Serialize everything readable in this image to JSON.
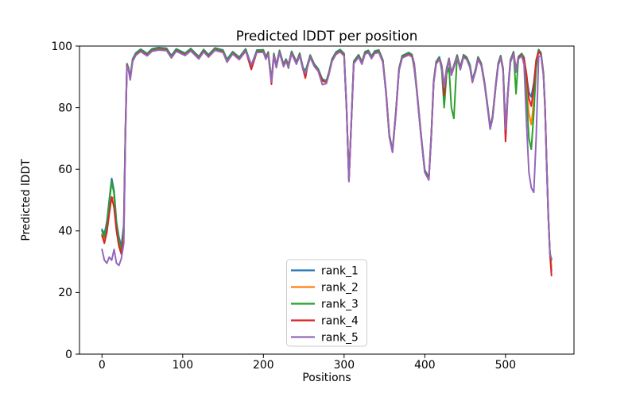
{
  "chart_data": {
    "type": "line",
    "title": "Predicted lDDT per position",
    "xlabel": "Positions",
    "ylabel": "Predicted lDDT",
    "xlim": [
      -27.85,
      584.85
    ],
    "ylim": [
      0,
      100
    ],
    "xticks": [
      0,
      100,
      200,
      300,
      400,
      500
    ],
    "yticks": [
      0,
      20,
      40,
      60,
      80,
      100
    ],
    "grid": false,
    "legend_loc": "lower center",
    "x": [
      0,
      3,
      6,
      9,
      12,
      15,
      18,
      21,
      24,
      27,
      29,
      31,
      33,
      35,
      38,
      42,
      48,
      56,
      62,
      70,
      80,
      86,
      92,
      103,
      110,
      120,
      126,
      132,
      140,
      150,
      155,
      162,
      170,
      178,
      185,
      192,
      200,
      203,
      206,
      210,
      213,
      216,
      220,
      225,
      228,
      231,
      235,
      241,
      245,
      249,
      252,
      255,
      258,
      263,
      268,
      273,
      278,
      281,
      285,
      290,
      295,
      300,
      303,
      306,
      309,
      312,
      318,
      322,
      326,
      330,
      334,
      338,
      343,
      348,
      352,
      356,
      360,
      364,
      368,
      372,
      376,
      380,
      384,
      387,
      390,
      395,
      400,
      405,
      408,
      411,
      414,
      418,
      421,
      424,
      427,
      430,
      433,
      436,
      440,
      444,
      448,
      452,
      456,
      459,
      463,
      466,
      470,
      474,
      478,
      481,
      484,
      488,
      491,
      494,
      497,
      500,
      503,
      506,
      510,
      513,
      516,
      520,
      523,
      526,
      529,
      532,
      535,
      538,
      541,
      544,
      547,
      549,
      551,
      553,
      555,
      557
    ],
    "series": [
      {
        "name": "rank_1",
        "color": "#1f77b4",
        "values": [
          40.5,
          39,
          43,
          50,
          57,
          53,
          43,
          38,
          35,
          42,
          72.5,
          94.3,
          92.8,
          89.8,
          95.8,
          97.8,
          99,
          97.6,
          99.1,
          99.5,
          99.3,
          96.9,
          99.1,
          97.7,
          99.2,
          96.6,
          98.9,
          97.2,
          99.4,
          98.7,
          95.7,
          98.2,
          96.4,
          99.1,
          93.8,
          98.7,
          98.8,
          96.5,
          98.1,
          89.1,
          97.6,
          93.9,
          98.6,
          94.1,
          95.8,
          94,
          98.3,
          94.9,
          97.7,
          93.1,
          91.9,
          94.3,
          97.1,
          94.2,
          92.6,
          89.3,
          88.8,
          91.3,
          95.8,
          98.1,
          98.9,
          97.6,
          80.3,
          56.8,
          76.3,
          95.1,
          97.2,
          94.9,
          98.2,
          98.6,
          96.7,
          98.4,
          98.7,
          95.5,
          85.3,
          71.3,
          66.3,
          78.3,
          92.8,
          96.9,
          97.4,
          97.9,
          97.3,
          94.3,
          86.3,
          72.3,
          59.8,
          57.3,
          71.3,
          88.8,
          94.9,
          96.5,
          93.7,
          87.3,
          92.8,
          96,
          91.3,
          93.8,
          97.1,
          93.1,
          97.2,
          96.4,
          93.9,
          89,
          92.6,
          96.5,
          94.4,
          88.3,
          80.3,
          73.8,
          77.3,
          87.8,
          94.5,
          96.9,
          92.8,
          73.8,
          85.3,
          95.5,
          98.2,
          92.3,
          96.6,
          97.6,
          96.3,
          90.3,
          85,
          83.5,
          88,
          95,
          98.9,
          97.8,
          91.3,
          80.3,
          62.3,
          45.3,
          33.3,
          27
        ]
      },
      {
        "name": "rank_2",
        "color": "#ff7f0e",
        "values": [
          39,
          37,
          40.5,
          47,
          50.5,
          51,
          41.5,
          36,
          33.5,
          40,
          71.5,
          93.9,
          92.4,
          89.4,
          95.4,
          97.4,
          98.6,
          97.2,
          98.7,
          99.1,
          98.9,
          96.5,
          98.7,
          97.3,
          98.8,
          96.2,
          98.5,
          96.8,
          99,
          98.3,
          95.3,
          97.8,
          96,
          98.7,
          93.4,
          98.3,
          98.4,
          96.1,
          97.7,
          88.7,
          97.2,
          93.5,
          98.2,
          93.7,
          95.4,
          93.6,
          97.9,
          94.5,
          97.3,
          92.7,
          91.5,
          93.9,
          96.7,
          93.8,
          92.2,
          88.9,
          88.4,
          90.9,
          95.4,
          97.7,
          98.5,
          97.2,
          79.9,
          56.4,
          75.9,
          94.7,
          96.8,
          94.5,
          97.8,
          98.2,
          96.3,
          98,
          98.3,
          95.1,
          84.9,
          70.9,
          65.9,
          77.9,
          92.4,
          96.5,
          97,
          97.5,
          96.9,
          93.9,
          85.9,
          71.9,
          59.4,
          56.9,
          70.9,
          88.4,
          94.5,
          96.1,
          93.3,
          86.9,
          92.4,
          95.6,
          90.9,
          93.4,
          96.7,
          92.7,
          96.8,
          96,
          93.5,
          88.6,
          92.2,
          96.1,
          94,
          87.9,
          79.9,
          73.4,
          76.9,
          87.4,
          94.1,
          96.5,
          92.4,
          73.4,
          84.9,
          95.1,
          97.8,
          91.9,
          96.2,
          97.2,
          95.9,
          87,
          78,
          74.5,
          82,
          94,
          98.5,
          97.4,
          90.9,
          79.9,
          61.9,
          44.9,
          32.9,
          28.5
        ]
      },
      {
        "name": "rank_3",
        "color": "#2ca02c",
        "values": [
          40,
          38,
          42,
          49,
          56,
          52,
          42,
          37,
          34,
          41,
          72.1,
          94.1,
          92.6,
          89.6,
          95.6,
          97.6,
          98.8,
          97.4,
          98.9,
          99.3,
          99.1,
          96.7,
          98.9,
          97.5,
          99,
          96.4,
          98.7,
          97,
          99.2,
          98.5,
          95.5,
          98,
          96.2,
          98.9,
          93.6,
          98.5,
          98.6,
          96.3,
          97.9,
          88.9,
          97.4,
          93,
          98.4,
          93.9,
          95.6,
          92.8,
          98.1,
          94.7,
          97.5,
          92.9,
          91.7,
          94.1,
          96.9,
          94,
          92.4,
          89.1,
          88.6,
          91.1,
          95.6,
          97.9,
          98.7,
          97.4,
          80.1,
          56.6,
          76.1,
          94.9,
          97,
          94.7,
          98,
          98.4,
          96.5,
          98.2,
          98.5,
          95.3,
          85.1,
          71.1,
          66.1,
          78.1,
          92.6,
          96.7,
          97.2,
          97.7,
          97.1,
          92.5,
          85.5,
          71.5,
          59.6,
          57.1,
          71.1,
          88.6,
          94.7,
          96.3,
          92,
          80,
          91,
          93,
          80,
          76.5,
          96.9,
          92.9,
          97,
          96.2,
          93.7,
          88.8,
          92.4,
          96.3,
          94.2,
          88.1,
          80.1,
          73.6,
          77.1,
          87.6,
          94.3,
          96.7,
          92.6,
          73.6,
          85.1,
          95.3,
          98,
          84.5,
          96.4,
          97.4,
          96.1,
          84,
          70,
          66.5,
          78,
          93,
          98.7,
          97.6,
          91.1,
          80.1,
          62.1,
          45.1,
          33.1,
          30.5
        ]
      },
      {
        "name": "rank_4",
        "color": "#d62728",
        "values": [
          38.5,
          36,
          39.5,
          45.5,
          51,
          47.5,
          40,
          35,
          32.5,
          39,
          70.8,
          93.7,
          92.2,
          89.2,
          95.2,
          97.2,
          98.4,
          97,
          98.5,
          98.9,
          98.7,
          96.3,
          98.5,
          97.1,
          98.6,
          96,
          98.3,
          96.6,
          98.8,
          98.1,
          94.8,
          97.6,
          95.8,
          98.5,
          92.4,
          98.1,
          98.2,
          95.9,
          97.5,
          87.6,
          97,
          93.3,
          98,
          93.5,
          95.2,
          93.4,
          97.7,
          94.3,
          97.1,
          92.5,
          89.6,
          93.7,
          96.5,
          93.6,
          92,
          88.7,
          88.2,
          90.7,
          95.2,
          97.5,
          98.3,
          97,
          79.7,
          56.2,
          75.7,
          94.5,
          96.6,
          94.3,
          97.6,
          98,
          96.1,
          97.8,
          98.1,
          94.9,
          84.7,
          70.7,
          65.7,
          77.7,
          92.2,
          96.3,
          96.8,
          97.3,
          96.7,
          93.7,
          85.7,
          71.7,
          59.2,
          56.7,
          70.7,
          88.2,
          94.3,
          95.9,
          93.1,
          84,
          92.2,
          95.4,
          90.7,
          93.2,
          96.5,
          92.5,
          96.6,
          95.8,
          93,
          88.2,
          92,
          95.9,
          93.8,
          87.7,
          79.7,
          73.2,
          76.7,
          87.2,
          93.9,
          96.3,
          92.2,
          69,
          84.7,
          94.9,
          97.6,
          91.7,
          96,
          97,
          95.7,
          91,
          83,
          80.5,
          86.5,
          95.5,
          98.3,
          97.2,
          90.7,
          79.7,
          61.7,
          44.7,
          32.7,
          25.5
        ]
      },
      {
        "name": "rank_5",
        "color": "#9467bd",
        "values": [
          34,
          30.5,
          29.5,
          31.5,
          30.5,
          34,
          29.5,
          28.8,
          31,
          36,
          70,
          93.5,
          92,
          89,
          95,
          97,
          98.2,
          96.8,
          98.3,
          98.7,
          98.5,
          96.1,
          98.3,
          96.9,
          98.4,
          95.8,
          98.1,
          96.4,
          98.6,
          97.9,
          94.9,
          97.4,
          95.6,
          98.3,
          94,
          97.9,
          98,
          95.7,
          97.3,
          88.3,
          96.8,
          93.1,
          97.8,
          93.3,
          95,
          93.2,
          97.5,
          94.1,
          96.9,
          92.3,
          91.1,
          93.5,
          96.3,
          93.4,
          91.8,
          87.5,
          87.8,
          90.5,
          95,
          97.3,
          98.1,
          96.8,
          79.5,
          56,
          75.5,
          94.3,
          96.4,
          94.1,
          97.4,
          97.8,
          95.9,
          97.6,
          97.9,
          94.7,
          84.5,
          70.5,
          65.5,
          77.5,
          92,
          96.1,
          96.6,
          97.1,
          96.5,
          93.5,
          85.5,
          71.5,
          59,
          56.5,
          70.5,
          88,
          94.1,
          95.7,
          92.9,
          86.5,
          92,
          95.2,
          90.5,
          93,
          96.3,
          92.3,
          96.4,
          95.6,
          93.1,
          88.4,
          91.8,
          95.7,
          93.6,
          87.5,
          79.5,
          73,
          76.5,
          87,
          93.7,
          96.1,
          92,
          73,
          84.5,
          94.7,
          97.4,
          91.5,
          95.8,
          96.8,
          94,
          75,
          59,
          54,
          52.5,
          70,
          96.5,
          97,
          90.5,
          79.5,
          61.5,
          44.5,
          32.5,
          31
        ]
      }
    ]
  }
}
